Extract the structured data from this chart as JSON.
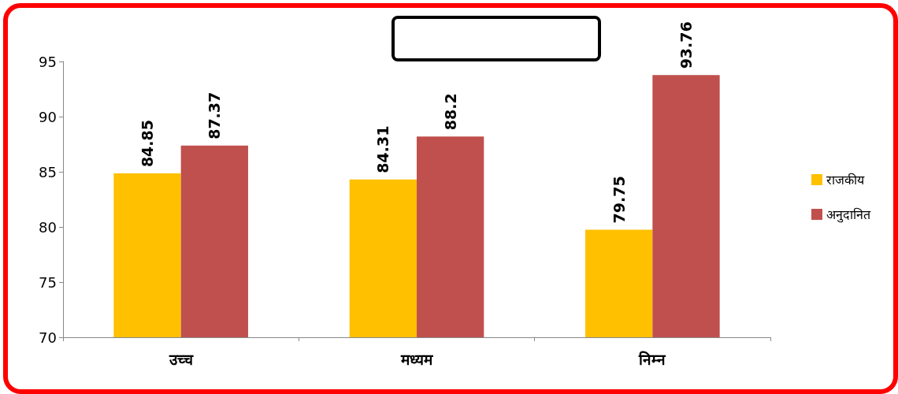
{
  "chart_data": {
    "type": "bar",
    "categories": [
      "उच्च",
      "मध्यम",
      "निम्न"
    ],
    "series": [
      {
        "name": "राजकीय",
        "color": "#ffc000",
        "values": [
          84.85,
          84.31,
          79.75
        ]
      },
      {
        "name": "अनुदानित",
        "color": "#c0504d",
        "values": [
          87.37,
          88.2,
          93.76
        ]
      }
    ],
    "ylim": [
      70,
      95
    ],
    "yticks": [
      70,
      75,
      80,
      85,
      90,
      95
    ],
    "grid": false,
    "legend": "right",
    "data_labels": true
  }
}
